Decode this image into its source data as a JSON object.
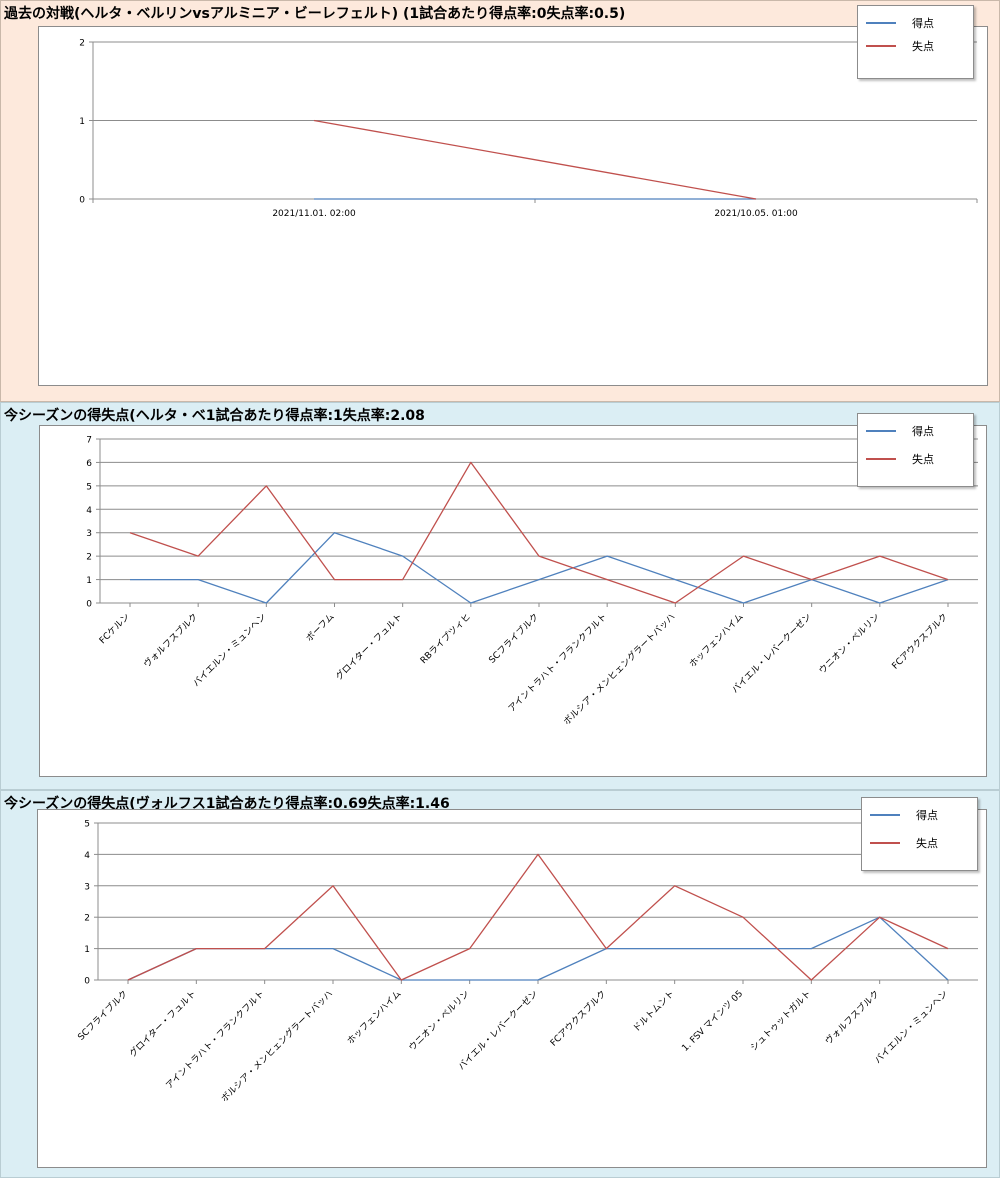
{
  "panels": [
    {
      "title": "過去の対戦(ヘルタ・ベルリンvsアルミニア・ビーレフェルト) (1試合あたり得点率:0失点率:0.5)",
      "legend": [
        "得点",
        "失点"
      ],
      "chart_data": {
        "type": "line",
        "categories": [
          "2021/11.01. 02:00",
          "2021/10.05. 01:00"
        ],
        "series": [
          {
            "name": "得点",
            "color": "#4f81bd",
            "values": [
              0,
              0
            ]
          },
          {
            "name": "失点",
            "color": "#c0504d",
            "values": [
              1,
              0
            ]
          }
        ],
        "ylim": [
          0,
          2
        ],
        "yticks": [
          0,
          1,
          2
        ],
        "grid": true,
        "legend_position": "top-right"
      }
    },
    {
      "title": "今シーズンの得失点(ヘルタ・ベ1試合あたり得点率:1失点率:2.08",
      "legend": [
        "得点",
        "失点"
      ],
      "chart_data": {
        "type": "line",
        "categories": [
          "FCケルン",
          "ヴォルフスブルク",
          "バイエルン・ミュンヘン",
          "ボーフム",
          "グロイター・フュルト",
          "RBライプツィヒ",
          "SCフライブルク",
          "アイントラハト・フランクフルト",
          "ボルシア・メンヒェングラートバッハ",
          "ホッフェンハイム",
          "バイエル・レバークーゼン",
          "ウニオン・ベルリン",
          "FCアウクスブルク"
        ],
        "series": [
          {
            "name": "得点",
            "color": "#4f81bd",
            "values": [
              1,
              1,
              0,
              3,
              2,
              0,
              1,
              2,
              1,
              0,
              1,
              0,
              1
            ]
          },
          {
            "name": "失点",
            "color": "#c0504d",
            "values": [
              3,
              2,
              5,
              1,
              1,
              6,
              2,
              1,
              0,
              2,
              1,
              2,
              1
            ]
          }
        ],
        "ylim": [
          0,
          7
        ],
        "yticks": [
          0,
          1,
          2,
          3,
          4,
          5,
          6,
          7
        ],
        "grid": true,
        "legend_position": "top-right"
      }
    },
    {
      "title": "今シーズンの得失点(ヴォルフス1試合あたり得点率:0.69失点率:1.46",
      "legend": [
        "得点",
        "失点"
      ],
      "chart_data": {
        "type": "line",
        "categories": [
          "SCフライブルク",
          "グロイター・フュルト",
          "アイントラハト・フランクフルト",
          "ボルシア・メンヒェングラートバッハ",
          "ホッフェンハイム",
          "ウニオン・ベルリン",
          "バイエル・レバークーゼン",
          "FCアウクスブルク",
          "ドルトムント",
          "1. FSV マインツ 05",
          "シュトゥットガルト",
          "ヴォルフスブルク",
          "バイエルン・ミュンヘン"
        ],
        "series": [
          {
            "name": "得点",
            "color": "#4f81bd",
            "values": [
              0,
              1,
              1,
              1,
              0,
              0,
              0,
              1,
              1,
              1,
              1,
              2,
              0
            ]
          },
          {
            "name": "失点",
            "color": "#c0504d",
            "values": [
              0,
              1,
              1,
              3,
              0,
              1,
              4,
              1,
              3,
              2,
              0,
              2,
              1
            ]
          }
        ],
        "ylim": [
          0,
          5
        ],
        "yticks": [
          0,
          1,
          2,
          3,
          4,
          5
        ],
        "grid": true,
        "legend_position": "top-right"
      }
    }
  ]
}
